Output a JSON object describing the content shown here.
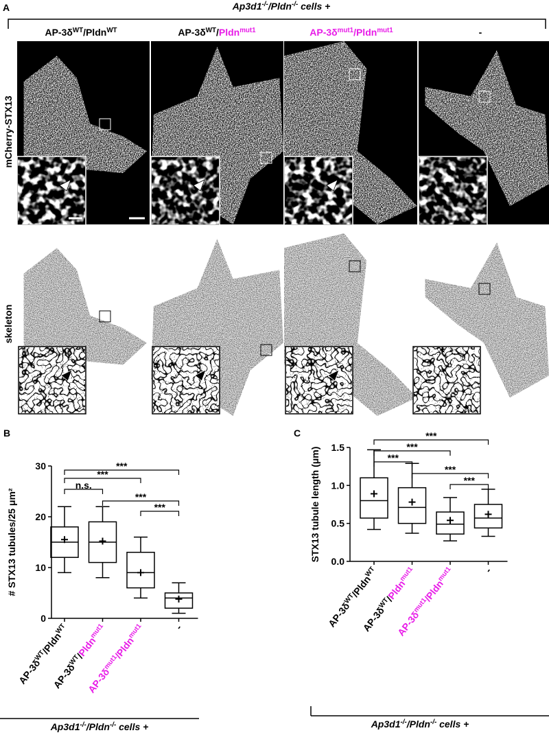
{
  "panel_a": {
    "label": "A",
    "header": [
      {
        "t": "Ap3d1",
        "i": true
      },
      {
        "t": "-/-",
        "sup": true,
        "i": true
      },
      {
        "t": "/Pldn",
        "i": true
      },
      {
        "t": "-/-",
        "sup": true,
        "i": true
      },
      {
        "t": " cells +",
        "i": true
      }
    ],
    "rows": [
      "mCherry-STX13",
      "skeleton"
    ],
    "columns": [
      [
        {
          "t": "AP-3δ"
        },
        {
          "t": "WT",
          "sup": true
        },
        {
          "t": "/Pldn"
        },
        {
          "t": "WT",
          "sup": true
        }
      ],
      [
        {
          "t": "AP-3δ"
        },
        {
          "t": "WT",
          "sup": true
        },
        {
          "t": "/"
        },
        {
          "t": "Pldn",
          "color": "#e81ce8"
        },
        {
          "t": "mut1",
          "sup": true,
          "color": "#e81ce8"
        }
      ],
      [
        {
          "t": "AP-3δ",
          "color": "#e81ce8"
        },
        {
          "t": "mut1",
          "sup": true,
          "color": "#e81ce8"
        },
        {
          "t": "/Pldn",
          "color": "#e81ce8"
        },
        {
          "t": "mut1",
          "sup": true,
          "color": "#e81ce8"
        }
      ],
      [
        {
          "t": "-"
        }
      ]
    ]
  },
  "chart_data": [
    {
      "type": "box",
      "panel": "B",
      "ylabel": "# STX13 tubules/25 μm²",
      "categories": [
        [
          {
            "t": "AP-3δ"
          },
          {
            "t": "WT",
            "sup": true
          },
          {
            "t": "/Pldn"
          },
          {
            "t": "WT",
            "sup": true
          }
        ],
        [
          {
            "t": "AP-3δ"
          },
          {
            "t": "WT",
            "sup": true
          },
          {
            "t": "/"
          },
          {
            "t": "Pldn",
            "color": "#e81ce8"
          },
          {
            "t": "mut1",
            "sup": true,
            "color": "#e81ce8"
          }
        ],
        [
          {
            "t": "AP-3δ",
            "color": "#e81ce8"
          },
          {
            "t": "mut1",
            "sup": true,
            "color": "#e81ce8"
          },
          {
            "t": "/Pldn",
            "color": "#e81ce8"
          },
          {
            "t": "mut1",
            "sup": true,
            "color": "#e81ce8"
          }
        ],
        [
          {
            "t": "-"
          }
        ]
      ],
      "low": [
        9,
        8,
        4,
        1
      ],
      "q1": [
        12,
        11,
        6,
        2
      ],
      "median": [
        15,
        15,
        9,
        4
      ],
      "q3": [
        18,
        19,
        13,
        5
      ],
      "high": [
        22,
        22,
        16,
        7
      ],
      "mean": [
        15.5,
        15.2,
        9,
        3.8
      ],
      "ylim": [
        0,
        30
      ],
      "yticks": [
        0,
        10,
        20,
        30
      ],
      "annotations": [
        "***",
        "***",
        "n.s.",
        "***",
        "***"
      ],
      "footer": [
        {
          "t": "Ap3d1",
          "i": true
        },
        {
          "t": "-/-",
          "sup": true,
          "i": true
        },
        {
          "t": "/Pldn",
          "i": true
        },
        {
          "t": "-/-",
          "sup": true,
          "i": true
        },
        {
          "t": " cells +",
          "i": true
        }
      ]
    },
    {
      "type": "box",
      "panel": "C",
      "ylabel": "STX13 tubule length (μm)",
      "categories": [
        [
          {
            "t": "AP-3δ"
          },
          {
            "t": "WT",
            "sup": true
          },
          {
            "t": "/Pldn"
          },
          {
            "t": "WT",
            "sup": true
          }
        ],
        [
          {
            "t": "AP-3δ"
          },
          {
            "t": "WT",
            "sup": true
          },
          {
            "t": "/"
          },
          {
            "t": "Pldn",
            "color": "#e81ce8"
          },
          {
            "t": "mut1",
            "sup": true,
            "color": "#e81ce8"
          }
        ],
        [
          {
            "t": "AP-3δ",
            "color": "#e81ce8"
          },
          {
            "t": "mut1",
            "sup": true,
            "color": "#e81ce8"
          },
          {
            "t": "/Pldn",
            "color": "#e81ce8"
          },
          {
            "t": "mut1",
            "sup": true,
            "color": "#e81ce8"
          }
        ],
        [
          {
            "t": "-"
          }
        ]
      ],
      "low": [
        0.42,
        0.37,
        0.27,
        0.33
      ],
      "q1": [
        0.57,
        0.5,
        0.36,
        0.44
      ],
      "median": [
        0.8,
        0.71,
        0.49,
        0.57
      ],
      "q3": [
        1.1,
        0.97,
        0.65,
        0.75
      ],
      "high": [
        1.47,
        1.29,
        0.84,
        0.95
      ],
      "mean": [
        0.89,
        0.78,
        0.54,
        0.62
      ],
      "ylim": [
        0,
        1.5
      ],
      "yticks": [
        {
          "value": 0,
          "label": "0.0"
        },
        {
          "value": 0.5,
          "label": "0.5"
        },
        {
          "value": 1,
          "label": "1.0"
        },
        {
          "value": 1.5,
          "label": "1.5"
        }
      ],
      "annotations": [
        "***",
        "***",
        "***",
        "***",
        "***"
      ],
      "footer": [
        {
          "t": "Ap3d1",
          "i": true
        },
        {
          "t": "-/-",
          "sup": true,
          "i": true
        },
        {
          "t": "/Pldn",
          "i": true
        },
        {
          "t": "-/-",
          "sup": true,
          "i": true
        },
        {
          "t": " cells +",
          "i": true
        }
      ]
    }
  ]
}
